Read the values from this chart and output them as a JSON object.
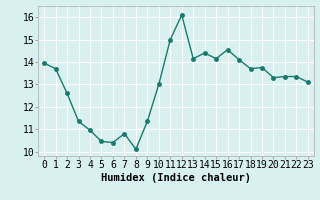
{
  "x": [
    0,
    1,
    2,
    3,
    4,
    5,
    6,
    7,
    8,
    9,
    10,
    11,
    12,
    13,
    14,
    15,
    16,
    17,
    18,
    19,
    20,
    21,
    22,
    23
  ],
  "y": [
    13.95,
    13.7,
    12.6,
    11.35,
    10.95,
    10.45,
    10.4,
    10.8,
    10.1,
    11.35,
    13.0,
    15.0,
    16.1,
    14.15,
    14.4,
    14.15,
    14.55,
    14.1,
    13.7,
    13.75,
    13.3,
    13.35,
    13.35,
    13.1
  ],
  "line_color": "#1a7a6e",
  "marker": "o",
  "marker_size": 2.5,
  "bg_color": "#d8f0f0",
  "grid_color": "#ffffff",
  "xlabel": "Humidex (Indice chaleur)",
  "xlim": [
    -0.5,
    23.5
  ],
  "ylim": [
    9.8,
    16.5
  ],
  "yticks": [
    10,
    11,
    12,
    13,
    14,
    15,
    16
  ],
  "xticks": [
    0,
    1,
    2,
    3,
    4,
    5,
    6,
    7,
    8,
    9,
    10,
    11,
    12,
    13,
    14,
    15,
    16,
    17,
    18,
    19,
    20,
    21,
    22,
    23
  ],
  "xtick_labels": [
    "0",
    "1",
    "2",
    "3",
    "4",
    "5",
    "6",
    "7",
    "8",
    "9",
    "10",
    "11",
    "12",
    "13",
    "14",
    "15",
    "16",
    "17",
    "18",
    "19",
    "20",
    "21",
    "22",
    "23"
  ],
  "line_width": 1.0,
  "tick_fontsize": 7,
  "xlabel_fontsize": 7.5
}
